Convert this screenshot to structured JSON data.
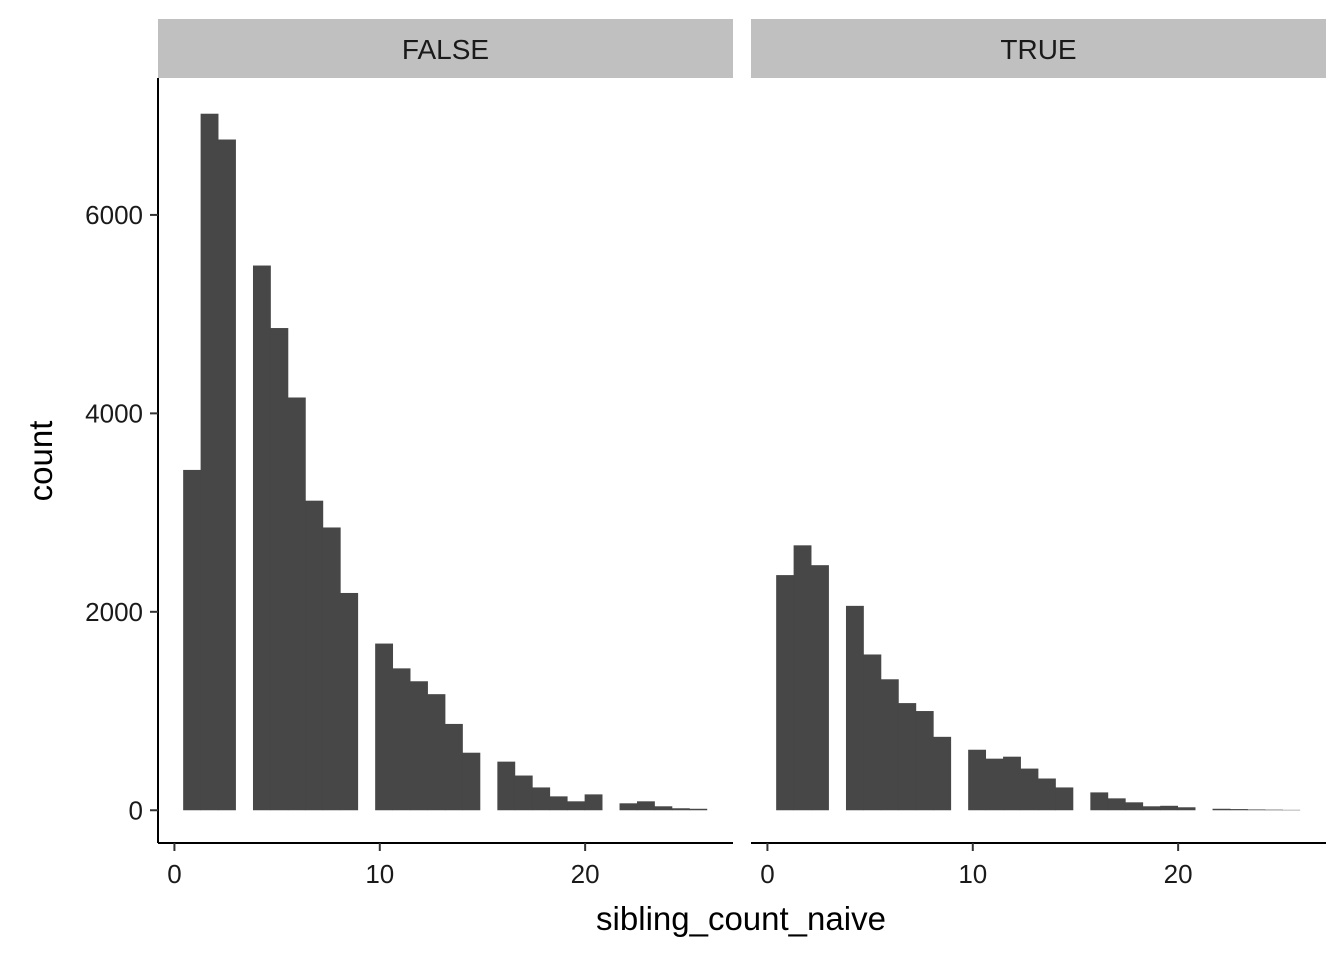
{
  "chart_data": {
    "type": "bar",
    "xlabel": "sibling_count_naive",
    "ylabel": "count",
    "xlim": [
      -0.8,
      27.2
    ],
    "ylim": [
      -330,
      7380
    ],
    "x_ticks": [
      0,
      10,
      20
    ],
    "y_ticks": [
      0,
      2000,
      4000,
      6000
    ],
    "grid": false,
    "bin_width": 0.85,
    "bar_color": "#474747",
    "strip_color": "#c0c0c0",
    "facets": [
      {
        "label": "FALSE",
        "bins": [
          {
            "x": 0.85,
            "count": 3430
          },
          {
            "x": 1.7,
            "count": 7020
          },
          {
            "x": 2.55,
            "count": 6760
          },
          {
            "x": 4.25,
            "count": 5490
          },
          {
            "x": 5.1,
            "count": 4860
          },
          {
            "x": 5.95,
            "count": 4160
          },
          {
            "x": 6.8,
            "count": 3120
          },
          {
            "x": 7.65,
            "count": 2850
          },
          {
            "x": 8.5,
            "count": 2190
          },
          {
            "x": 10.2,
            "count": 1680
          },
          {
            "x": 11.05,
            "count": 1430
          },
          {
            "x": 11.9,
            "count": 1300
          },
          {
            "x": 12.75,
            "count": 1170
          },
          {
            "x": 13.6,
            "count": 870
          },
          {
            "x": 14.45,
            "count": 580
          },
          {
            "x": 16.15,
            "count": 490
          },
          {
            "x": 17.0,
            "count": 350
          },
          {
            "x": 17.85,
            "count": 230
          },
          {
            "x": 18.7,
            "count": 140
          },
          {
            "x": 19.55,
            "count": 90
          },
          {
            "x": 20.4,
            "count": 160
          },
          {
            "x": 22.1,
            "count": 70
          },
          {
            "x": 22.95,
            "count": 90
          },
          {
            "x": 23.8,
            "count": 40
          },
          {
            "x": 24.65,
            "count": 20
          },
          {
            "x": 25.5,
            "count": 15
          }
        ]
      },
      {
        "label": "TRUE",
        "bins": [
          {
            "x": 0.85,
            "count": 2370
          },
          {
            "x": 1.7,
            "count": 2670
          },
          {
            "x": 2.55,
            "count": 2470
          },
          {
            "x": 4.25,
            "count": 2060
          },
          {
            "x": 5.1,
            "count": 1570
          },
          {
            "x": 5.95,
            "count": 1320
          },
          {
            "x": 6.8,
            "count": 1080
          },
          {
            "x": 7.65,
            "count": 1000
          },
          {
            "x": 8.5,
            "count": 740
          },
          {
            "x": 10.2,
            "count": 610
          },
          {
            "x": 11.05,
            "count": 520
          },
          {
            "x": 11.9,
            "count": 540
          },
          {
            "x": 12.75,
            "count": 420
          },
          {
            "x": 13.6,
            "count": 320
          },
          {
            "x": 14.45,
            "count": 230
          },
          {
            "x": 16.15,
            "count": 180
          },
          {
            "x": 17.0,
            "count": 120
          },
          {
            "x": 17.85,
            "count": 80
          },
          {
            "x": 18.7,
            "count": 40
          },
          {
            "x": 19.55,
            "count": 45
          },
          {
            "x": 20.4,
            "count": 30
          },
          {
            "x": 22.1,
            "count": 15
          },
          {
            "x": 22.95,
            "count": 12
          },
          {
            "x": 23.8,
            "count": 8
          },
          {
            "x": 24.65,
            "count": 6
          },
          {
            "x": 25.5,
            "count": 4
          }
        ]
      }
    ]
  }
}
